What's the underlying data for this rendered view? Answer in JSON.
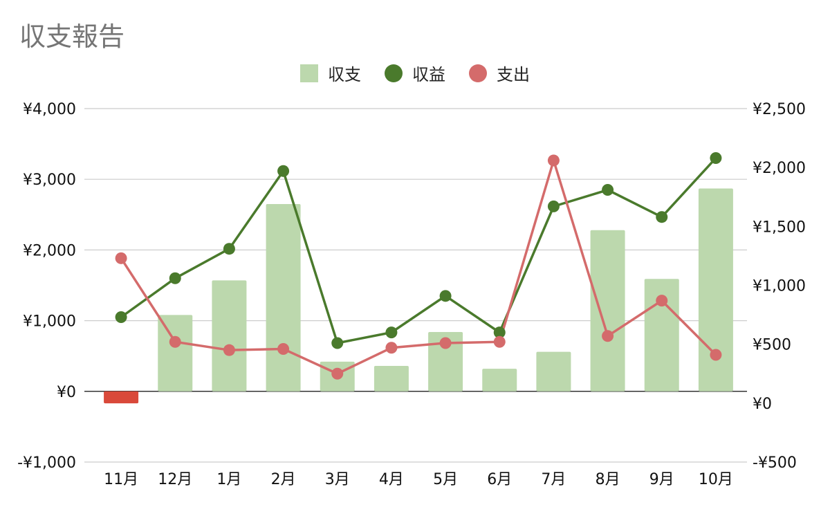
{
  "chart_data": {
    "type": "bar-line-combo",
    "title": "収支報告",
    "categories": [
      "11月",
      "12月",
      "1月",
      "2月",
      "3月",
      "4月",
      "5月",
      "6月",
      "7月",
      "8月",
      "9月",
      "10月"
    ],
    "series": [
      {
        "name": "収支",
        "type": "bar",
        "axis": "left",
        "color": "#bcd8ad",
        "negative_color": "#d9493a",
        "values": [
          -170,
          1080,
          1570,
          2650,
          420,
          360,
          840,
          320,
          560,
          2280,
          1590,
          2870
        ]
      },
      {
        "name": "収益",
        "type": "line",
        "axis": "right",
        "color": "#4a7a2c",
        "values": [
          730,
          1060,
          1310,
          1970,
          510,
          600,
          910,
          600,
          1670,
          1810,
          1580,
          2080
        ]
      },
      {
        "name": "支出",
        "type": "line",
        "axis": "right",
        "color": "#d46b6b",
        "values": [
          1230,
          520,
          450,
          460,
          250,
          470,
          510,
          520,
          2060,
          570,
          870,
          410
        ]
      }
    ],
    "left_axis": {
      "ylim": [
        -1000,
        4000
      ],
      "ticks": [
        -1000,
        0,
        1000,
        2000,
        3000,
        4000
      ],
      "tick_labels": [
        "-¥1,000",
        "¥0",
        "¥1,000",
        "¥2,000",
        "¥3,000",
        "¥4,000"
      ]
    },
    "right_axis": {
      "ylim": [
        -500,
        2500
      ],
      "ticks": [
        -500,
        0,
        500,
        1000,
        1500,
        2000,
        2500
      ],
      "tick_labels": [
        "-¥500",
        "¥0",
        "¥500",
        "¥1,000",
        "¥1,500",
        "¥2,000",
        "¥2,500"
      ]
    },
    "legend_position": "top-center",
    "grid": true
  }
}
